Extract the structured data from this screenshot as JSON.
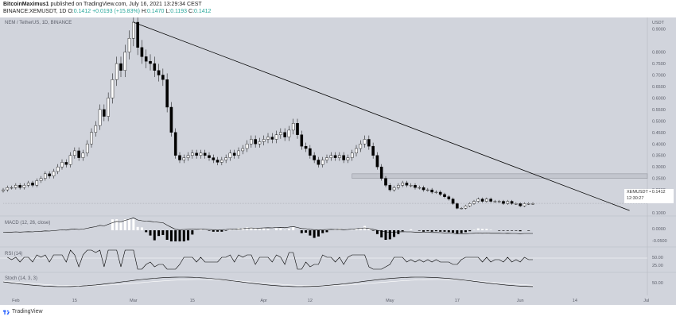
{
  "header": {
    "author": "BitcoinMaximus1",
    "published_text": " published on TradingView.com, July 16, 2021 13:29:34 CEST",
    "symbol_line": "BINANCE:XEMUSDT, 1D",
    "ohlc_open_label": "O:",
    "ohlc_open": "0.1412",
    "ohlc_change": "+0.0193 (+15.83%)",
    "ohlc_high_label": "H:",
    "ohlc_high": "0.1470",
    "ohlc_low_label": "L:",
    "ohlc_low": "0.1193",
    "ohlc_close_label": "C:",
    "ohlc_close": "0.1412"
  },
  "main_pane": {
    "label": "NEM / TetherUS, 1D, BINANCE",
    "currency": "USDT",
    "price_ticks": [
      "0.9000",
      "0.8000",
      "0.7500",
      "0.7000",
      "0.6500",
      "0.6000",
      "0.5500",
      "0.5000",
      "0.4500",
      "0.4000",
      "0.3500",
      "0.3000",
      "0.2500",
      "0.2000",
      "0.1500",
      "0.1000"
    ],
    "price_tag_symbol": "XEMUSDT",
    "price_tag_value": "0.1412",
    "price_tag_time": "12:30:27",
    "price_tag_text": "XEMUSDT • 0.1412",
    "support_box": {
      "low": 0.25,
      "high": 0.27
    },
    "trendline": {
      "from": {
        "date": "2021-03-01",
        "price": 0.93
      },
      "to": {
        "date": "2021-06-27",
        "price": 0.11
      }
    }
  },
  "macd_pane": {
    "label": "MACD (12, 26, close)",
    "ticks": [
      "0.0000",
      "-0.0500"
    ]
  },
  "rsi_pane": {
    "label": "RSI (14)",
    "ticks": [
      "50.00",
      "25.00"
    ]
  },
  "stoch_pane": {
    "label": "Stoch (14, 3, 3)",
    "ticks": [
      "50.00"
    ]
  },
  "time_axis": {
    "labels": [
      "Feb",
      "15",
      "Mar",
      "15",
      "Apr",
      "12",
      "May",
      "17",
      "Jun",
      "14",
      "Jul",
      "12",
      "Aug",
      "16"
    ]
  },
  "footer": {
    "brand": "TradingView"
  },
  "colors": {
    "background": "#d1d4dc",
    "up_candle": "#ffffff",
    "down_candle": "#000000",
    "trendline": "#000000",
    "support_box": "#c3c6ce",
    "macd_line": "#000000",
    "signal_line": "#000000"
  },
  "chart_data": {
    "type": "candlestick",
    "x_start": "2021-01-29",
    "x_end": "2021-07-16",
    "y_range": [
      0.1,
      0.93
    ],
    "close_series": [
      0.2,
      0.21,
      0.21,
      0.22,
      0.21,
      0.22,
      0.23,
      0.22,
      0.24,
      0.25,
      0.27,
      0.26,
      0.28,
      0.3,
      0.32,
      0.31,
      0.35,
      0.37,
      0.34,
      0.36,
      0.4,
      0.45,
      0.48,
      0.55,
      0.52,
      0.6,
      0.68,
      0.75,
      0.72,
      0.8,
      0.86,
      0.93,
      0.82,
      0.78,
      0.76,
      0.75,
      0.72,
      0.7,
      0.68,
      0.56,
      0.45,
      0.35,
      0.33,
      0.34,
      0.35,
      0.36,
      0.35,
      0.36,
      0.35,
      0.34,
      0.33,
      0.32,
      0.33,
      0.34,
      0.36,
      0.35,
      0.37,
      0.38,
      0.4,
      0.42,
      0.4,
      0.41,
      0.42,
      0.43,
      0.42,
      0.44,
      0.45,
      0.43,
      0.46,
      0.49,
      0.44,
      0.39,
      0.38,
      0.35,
      0.33,
      0.31,
      0.33,
      0.34,
      0.35,
      0.34,
      0.35,
      0.33,
      0.34,
      0.36,
      0.38,
      0.4,
      0.42,
      0.39,
      0.35,
      0.3,
      0.25,
      0.22,
      0.2,
      0.21,
      0.22,
      0.23,
      0.22,
      0.22,
      0.21,
      0.21,
      0.2,
      0.2,
      0.19,
      0.19,
      0.18,
      0.17,
      0.16,
      0.14,
      0.12,
      0.12,
      0.13,
      0.14,
      0.15,
      0.16,
      0.15,
      0.16,
      0.15,
      0.15,
      0.15,
      0.14,
      0.15,
      0.14,
      0.14,
      0.13,
      0.14,
      0.14,
      0.14
    ]
  }
}
